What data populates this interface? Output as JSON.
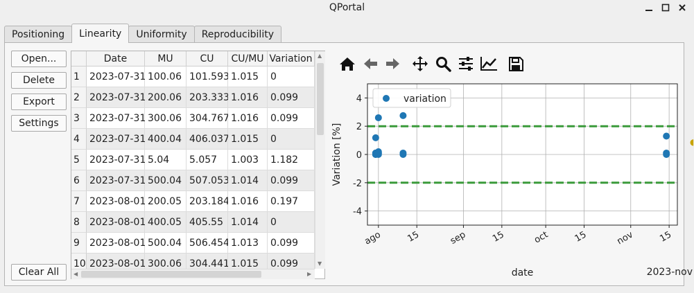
{
  "window": {
    "title": "QPortal"
  },
  "tabs": [
    {
      "label": "Positioning",
      "active": false
    },
    {
      "label": "Linearity",
      "active": true
    },
    {
      "label": "Uniformity",
      "active": false
    },
    {
      "label": "Reproducibility",
      "active": false
    }
  ],
  "buttons": {
    "open": "Open...",
    "delete": "Delete",
    "export": "Export",
    "settings": "Settings",
    "clear_all": "Clear All"
  },
  "table": {
    "columns": [
      "Date",
      "MU",
      "CU",
      "CU/MU",
      "Variation"
    ],
    "rows": [
      {
        "n": "1",
        "cells": [
          "2023-07-31",
          "100.06",
          "101.593",
          "1.015",
          "0"
        ]
      },
      {
        "n": "2",
        "cells": [
          "2023-07-31",
          "200.06",
          "203.333",
          "1.016",
          "0.099"
        ]
      },
      {
        "n": "3",
        "cells": [
          "2023-07-31",
          "300.06",
          "304.767",
          "1.016",
          "0.099"
        ]
      },
      {
        "n": "4",
        "cells": [
          "2023-07-31",
          "400.04",
          "406.037",
          "1.015",
          "0"
        ]
      },
      {
        "n": "5",
        "cells": [
          "2023-07-31",
          "5.04",
          "5.057",
          "1.003",
          "1.182"
        ]
      },
      {
        "n": "6",
        "cells": [
          "2023-07-31",
          "500.04",
          "507.053",
          "1.014",
          "0.099"
        ]
      },
      {
        "n": "7",
        "cells": [
          "2023-08-01",
          "200.05",
          "203.184",
          "1.016",
          "0.197"
        ]
      },
      {
        "n": "8",
        "cells": [
          "2023-08-01",
          "400.05",
          "405.55",
          "1.014",
          "0"
        ]
      },
      {
        "n": "9",
        "cells": [
          "2023-08-01",
          "500.04",
          "506.454",
          "1.013",
          "0.099"
        ]
      },
      {
        "n": "10",
        "cells": [
          "2023-08-01",
          "300.06",
          "304.441",
          "1.015",
          "0.099"
        ]
      }
    ]
  },
  "toolbar": {
    "icons": [
      "home-icon",
      "back-arrow-icon",
      "forward-arrow-icon",
      "pan-icon",
      "zoom-icon",
      "configure-subplots-icon",
      "edit-axis-icon",
      "save-icon"
    ]
  },
  "chart_data": {
    "type": "scatter",
    "xlabel": "date",
    "ylabel": "Variation [%]",
    "offset_label": "2023-nov",
    "legend": {
      "entries": [
        "variation"
      ],
      "placement": "top-left"
    },
    "grid": true,
    "ylim": [
      -5,
      5
    ],
    "xlim": [
      "2023-07-28",
      "2023-11-18"
    ],
    "yticks": [
      -4,
      -2,
      0,
      2,
      4
    ],
    "xticks": [
      {
        "date": "2023-08-01",
        "label": "ago"
      },
      {
        "date": "2023-08-15",
        "label": "15"
      },
      {
        "date": "2023-09-01",
        "label": "sep"
      },
      {
        "date": "2023-09-15",
        "label": "15"
      },
      {
        "date": "2023-10-01",
        "label": "oct"
      },
      {
        "date": "2023-10-15",
        "label": "15"
      },
      {
        "date": "2023-11-01",
        "label": "nov"
      },
      {
        "date": "2023-11-15",
        "label": "15"
      }
    ],
    "series": [
      {
        "name": "variation",
        "color": "#1f77b4",
        "points": [
          {
            "x": "2023-07-31",
            "y": 0
          },
          {
            "x": "2023-07-31",
            "y": 0.099
          },
          {
            "x": "2023-07-31",
            "y": 0.099
          },
          {
            "x": "2023-07-31",
            "y": 0
          },
          {
            "x": "2023-07-31",
            "y": 1.182
          },
          {
            "x": "2023-07-31",
            "y": 0.099
          },
          {
            "x": "2023-08-01",
            "y": 0.197
          },
          {
            "x": "2023-08-01",
            "y": 0
          },
          {
            "x": "2023-08-01",
            "y": 0.099
          },
          {
            "x": "2023-08-01",
            "y": 0.099
          },
          {
            "x": "2023-08-01",
            "y": 2.6
          },
          {
            "x": "2023-08-10",
            "y": 2.75
          },
          {
            "x": "2023-08-10",
            "y": 0.1
          },
          {
            "x": "2023-08-10",
            "y": 0
          },
          {
            "x": "2023-11-14",
            "y": 1.3
          },
          {
            "x": "2023-11-14",
            "y": 0.1
          },
          {
            "x": "2023-11-14",
            "y": 0
          }
        ]
      }
    ],
    "reference_lines": [
      {
        "y": 2,
        "color": "#3a9a3a",
        "style": "dashed"
      },
      {
        "y": -2,
        "color": "#3a9a3a",
        "style": "dashed"
      }
    ]
  }
}
